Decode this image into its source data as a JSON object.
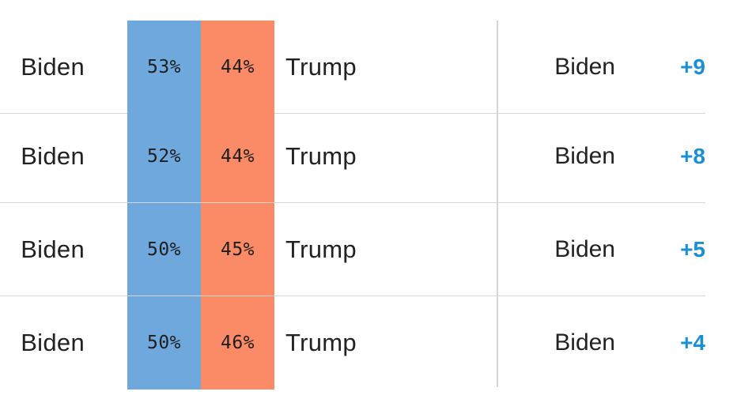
{
  "colors": {
    "dem": "#6fa8dc",
    "rep": "#fa8b66",
    "margin_text": "#1b8fd4",
    "rule": "#d6d6d6"
  },
  "rows": [
    {
      "left_candidate": "Biden",
      "dem_pct": "53%",
      "rep_pct": "44%",
      "right_candidate": "Trump",
      "leader": "Biden",
      "margin": "+9"
    },
    {
      "left_candidate": "Biden",
      "dem_pct": "52%",
      "rep_pct": "44%",
      "right_candidate": "Trump",
      "leader": "Biden",
      "margin": "+8"
    },
    {
      "left_candidate": "Biden",
      "dem_pct": "50%",
      "rep_pct": "45%",
      "right_candidate": "Trump",
      "leader": "Biden",
      "margin": "+5"
    },
    {
      "left_candidate": "Biden",
      "dem_pct": "50%",
      "rep_pct": "46%",
      "right_candidate": "Trump",
      "leader": "Biden",
      "margin": "+4"
    }
  ]
}
